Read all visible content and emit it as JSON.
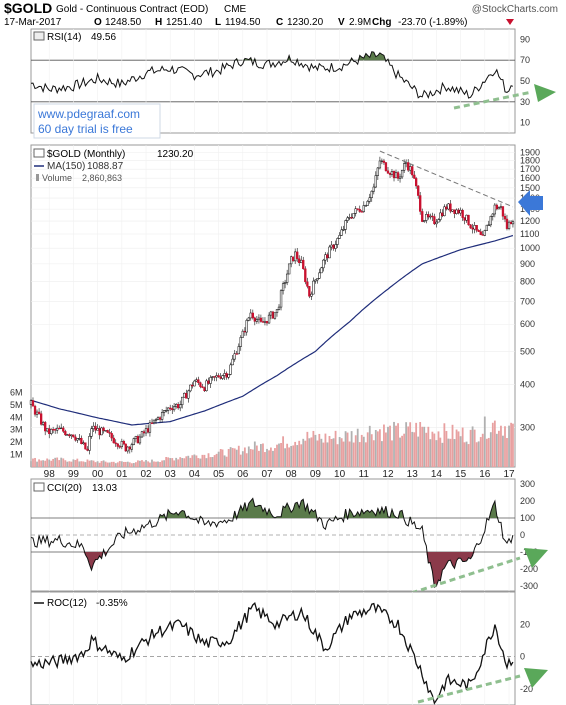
{
  "header": {
    "symbol": "$GOLD",
    "description": "Gold - Continuous Contract (EOD)",
    "exchange": "CME",
    "date": "17-Mar-2017",
    "o_label": "O",
    "open": "1248.50",
    "h_label": "H",
    "high": "1251.40",
    "l_label": "L",
    "low": "1194.50",
    "c_label": "C",
    "close": "1230.20",
    "v_label": "V",
    "volume": "2.9M",
    "chg_label": "Chg",
    "change": "-23.70 (-1.89%)",
    "source": "@StockCharts.com"
  },
  "watermark": {
    "line1": "www.pdegraaf.com",
    "line2": "60 day trial is free"
  },
  "colors": {
    "up_candle": "#000000",
    "down_candle": "#c8102e",
    "ma_line": "#1f2d7a",
    "volume_up": "#e8a0a0",
    "volume_down": "#b0b0b0",
    "overbought_fill": "#5a7a4a",
    "oversold_fill": "#8b3a4a",
    "trend_arrow": "#5aa85a",
    "resistance_arrow": "#3b78d8",
    "watermark_text": "#3b78d8"
  },
  "chart_data": [
    {
      "type": "line",
      "panel": "RSI",
      "legend": "RSI(14)",
      "last_value": "49.56",
      "yticks": [
        10,
        30,
        50,
        70,
        90
      ],
      "ylim": [
        0,
        100
      ],
      "reference_lines": [
        30,
        70
      ],
      "x": [
        "1997-04",
        "1998-01",
        "1999-01",
        "2000-01",
        "2001-01",
        "2002-01",
        "2003-01",
        "2004-01",
        "2005-01",
        "2006-01",
        "2007-01",
        "2008-01",
        "2009-01",
        "2010-01",
        "2011-01",
        "2011-09",
        "2012-06",
        "2013-06",
        "2014-06",
        "2015-06",
        "2016-06",
        "2016-12",
        "2017-03"
      ],
      "values": [
        48,
        42,
        45,
        52,
        47,
        58,
        62,
        56,
        60,
        70,
        66,
        72,
        62,
        64,
        72,
        75,
        55,
        35,
        45,
        36,
        62,
        40,
        49.56
      ]
    },
    {
      "type": "candlestick",
      "panel": "Price",
      "legend": "$GOLD (Monthly)",
      "legend_value": "1230.20",
      "ma_legend": "MA(150)",
      "ma_value": "1088.87",
      "volume_legend": "Volume",
      "volume_value": "2,860,863",
      "scale": "log",
      "yticks": [
        300,
        400,
        500,
        600,
        700,
        800,
        900,
        1000,
        1100,
        1200,
        1300,
        1400,
        1500,
        1600,
        1700,
        1800,
        1900
      ],
      "ylim": [
        230,
        2000
      ],
      "xticks": [
        "98",
        "99",
        "00",
        "01",
        "02",
        "03",
        "04",
        "05",
        "06",
        "07",
        "08",
        "09",
        "10",
        "11",
        "12",
        "13",
        "14",
        "15",
        "16",
        "17"
      ],
      "price_close_path": {
        "x": [
          "1997-04",
          "1997-12",
          "1998-06",
          "1999-01",
          "1999-08",
          "1999-10",
          "2000-06",
          "2001-03",
          "2001-10",
          "2002-06",
          "2003-01",
          "2003-06",
          "2004-01",
          "2004-06",
          "2005-01",
          "2005-06",
          "2006-01",
          "2006-05",
          "2006-10",
          "2007-06",
          "2008-01",
          "2008-03",
          "2008-06",
          "2008-10",
          "2009-06",
          "2010-01",
          "2010-06",
          "2011-01",
          "2011-06",
          "2011-09",
          "2012-01",
          "2012-06",
          "2012-10",
          "2013-01",
          "2013-06",
          "2013-12",
          "2014-06",
          "2015-01",
          "2015-06",
          "2015-12",
          "2016-06",
          "2016-09",
          "2016-12",
          "2017-03"
        ],
        "values": [
          350,
          290,
          295,
          287,
          255,
          300,
          285,
          262,
          280,
          315,
          345,
          350,
          410,
          395,
          425,
          435,
          560,
          650,
          600,
          655,
          920,
          960,
          900,
          730,
          940,
          1080,
          1240,
          1330,
          1500,
          1800,
          1700,
          1600,
          1780,
          1660,
          1230,
          1200,
          1320,
          1280,
          1170,
          1060,
          1320,
          1310,
          1150,
          1230.2
        ]
      },
      "ma_150": {
        "x": [
          "1997-04",
          "1998-06",
          "2000-01",
          "2001-06",
          "2003-01",
          "2004-06",
          "2006-01",
          "2007-06",
          "2009-01",
          "2010-06",
          "2012-01",
          "2013-06",
          "2015-01",
          "2016-06",
          "2017-03"
        ],
        "values": [
          360,
          340,
          320,
          305,
          312,
          335,
          370,
          425,
          500,
          610,
          760,
          900,
          990,
          1050,
          1088.87
        ]
      },
      "annotations": [
        {
          "kind": "dashed downtrend line",
          "from": "2011-09",
          "to": "2017-03"
        },
        {
          "kind": "arrow",
          "label": "resistance test",
          "at": "2017-03"
        }
      ]
    },
    {
      "type": "bar",
      "panel": "Volume",
      "ylim": [
        0,
        7
      ],
      "yticks_labels": [
        "1M",
        "2M",
        "3M",
        "4M",
        "5M",
        "6M"
      ],
      "yticks": [
        1,
        2,
        3,
        4,
        5,
        6
      ],
      "x": [
        "1998",
        "1999",
        "2000",
        "2001",
        "2002",
        "2003",
        "2004",
        "2005",
        "2006",
        "2007",
        "2008",
        "2009",
        "2010",
        "2011",
        "2012",
        "2013",
        "2014",
        "2015",
        "2016",
        "2017"
      ],
      "values": [
        0.6,
        0.5,
        0.4,
        0.4,
        0.5,
        0.8,
        1.0,
        1.2,
        1.6,
        1.8,
        2.4,
        2.3,
        2.5,
        3.0,
        2.8,
        3.1,
        2.7,
        2.6,
        3.5,
        3.0
      ]
    },
    {
      "type": "line",
      "panel": "CCI",
      "legend": "CCI(20)",
      "last_value": "13.03",
      "yticks": [
        -300,
        -200,
        -100,
        0,
        100,
        200,
        300
      ],
      "ylim": [
        -330,
        330
      ],
      "reference_lines": [
        -100,
        0,
        100
      ],
      "x": [
        "1997-04",
        "1998-06",
        "1999-06",
        "1999-10",
        "2001-01",
        "2002-06",
        "2003-06",
        "2004-06",
        "2005-06",
        "2006-06",
        "2007-06",
        "2008-06",
        "2009-06",
        "2010-06",
        "2011-06",
        "2012-06",
        "2013-06",
        "2013-12",
        "2014-06",
        "2015-06",
        "2016-06",
        "2016-12",
        "2017-03"
      ],
      "values": [
        -40,
        -30,
        -70,
        -180,
        0,
        80,
        150,
        60,
        90,
        190,
        120,
        200,
        60,
        130,
        150,
        130,
        20,
        -300,
        -180,
        -150,
        180,
        -70,
        13.03
      ]
    },
    {
      "type": "line",
      "panel": "ROC",
      "legend": "ROC(12)",
      "last_value": "-0.35%",
      "yticks": [
        -20,
        0,
        20
      ],
      "ylim": [
        -30,
        40
      ],
      "reference_lines": [
        0
      ],
      "x": [
        "1997-04",
        "1998-06",
        "1999-06",
        "1999-10",
        "2001-01",
        "2002-06",
        "2003-06",
        "2004-06",
        "2005-06",
        "2006-06",
        "2007-06",
        "2008-06",
        "2009-06",
        "2010-06",
        "2011-06",
        "2012-06",
        "2013-06",
        "2013-12",
        "2014-06",
        "2015-06",
        "2016-06",
        "2016-12",
        "2017-03"
      ],
      "values": [
        -5,
        -3,
        2,
        10,
        -2,
        15,
        20,
        8,
        10,
        30,
        20,
        28,
        5,
        25,
        30,
        20,
        -10,
        -28,
        -15,
        -18,
        20,
        -5,
        -0.35
      ]
    }
  ]
}
